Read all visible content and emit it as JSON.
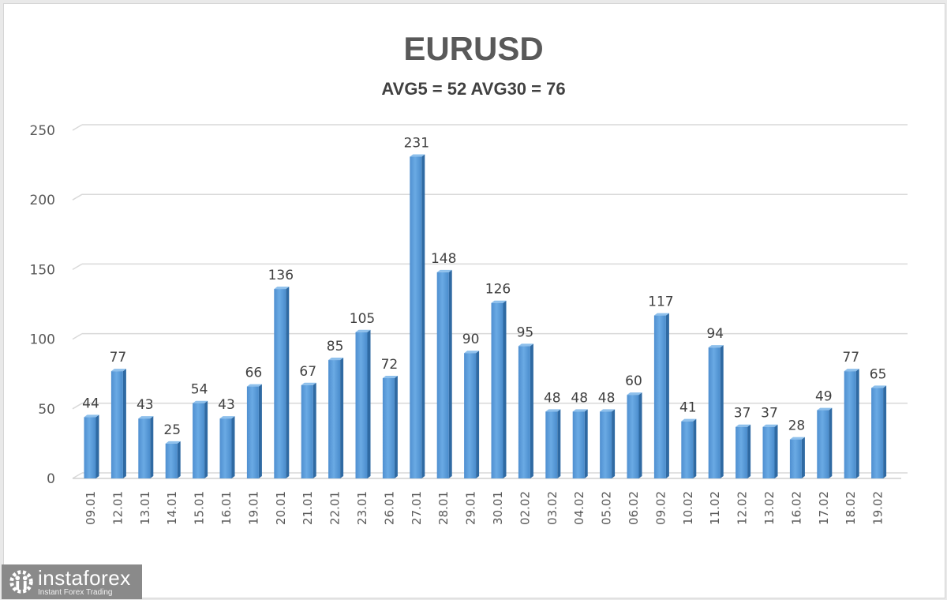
{
  "chart_data": {
    "type": "bar",
    "title": "EURUSD",
    "subtitle": "AVG5 = 52 AVG30 = 76",
    "xlabel": "",
    "ylabel": "",
    "ylim": [
      0,
      250
    ],
    "yticks": [
      0,
      50,
      100,
      150,
      200,
      250
    ],
    "grid": true,
    "legend": "none",
    "bar_color": "#5b9bd5",
    "categories": [
      "09.01",
      "12.01",
      "13.01",
      "14.01",
      "15.01",
      "16.01",
      "19.01",
      "20.01",
      "21.01",
      "22.01",
      "23.01",
      "26.01",
      "27.01",
      "28.01",
      "29.01",
      "30.01",
      "02.02",
      "03.02",
      "04.02",
      "05.02",
      "06.02",
      "09.02",
      "10.02",
      "11.02",
      "12.02",
      "13.02",
      "16.02",
      "17.02",
      "18.02",
      "19.02"
    ],
    "values": [
      44,
      77,
      43,
      25,
      54,
      43,
      66,
      136,
      67,
      85,
      105,
      72,
      231,
      148,
      90,
      126,
      95,
      48,
      48,
      48,
      60,
      117,
      41,
      94,
      37,
      37,
      28,
      49,
      77,
      65
    ]
  },
  "watermark": {
    "name": "instaforex",
    "tagline": "Instant Forex Trading"
  }
}
